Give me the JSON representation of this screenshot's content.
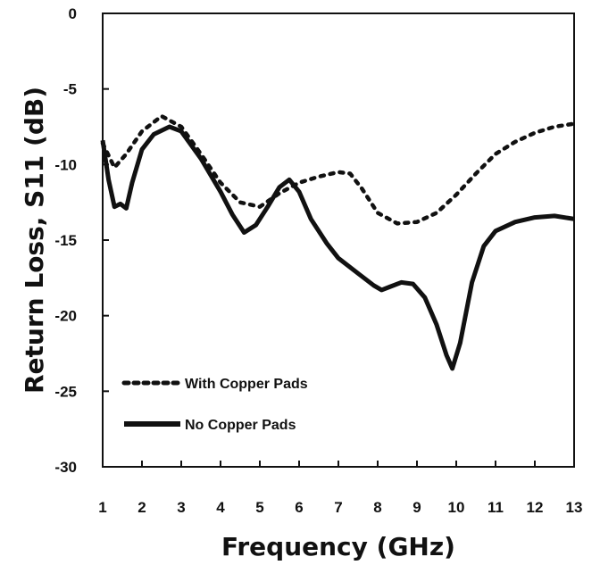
{
  "chart_data": {
    "type": "line",
    "xlabel": "Frequency (GHz)",
    "ylabel": "Return Loss, S11 (dB)",
    "xlim": [
      1,
      13
    ],
    "ylim": [
      -30,
      0
    ],
    "xticks": [
      "1",
      "2",
      "3",
      "4",
      "5",
      "6",
      "7",
      "8",
      "9",
      "10",
      "11",
      "12",
      "13"
    ],
    "yticks": [
      "0",
      "-5",
      "-10",
      "-15",
      "-20",
      "-25",
      "-30"
    ],
    "grid": false,
    "legend_position": "bottom-left",
    "series": [
      {
        "name": "With Copper Pads",
        "style": "dotted",
        "color": "#111111",
        "points": [
          [
            1,
            -8.6
          ],
          [
            1.3,
            -10.2
          ],
          [
            1.6,
            -9.3
          ],
          [
            2,
            -7.8
          ],
          [
            2.5,
            -6.8
          ],
          [
            3,
            -7.5
          ],
          [
            3.5,
            -9.3
          ],
          [
            4,
            -11.2
          ],
          [
            4.5,
            -12.5
          ],
          [
            5,
            -12.8
          ],
          [
            5.5,
            -11.9
          ],
          [
            6,
            -11.2
          ],
          [
            6.5,
            -10.8
          ],
          [
            7,
            -10.5
          ],
          [
            7.3,
            -10.6
          ],
          [
            7.6,
            -11.6
          ],
          [
            8,
            -13.2
          ],
          [
            8.5,
            -13.9
          ],
          [
            9,
            -13.8
          ],
          [
            9.5,
            -13.2
          ],
          [
            10,
            -12.0
          ],
          [
            10.5,
            -10.6
          ],
          [
            11,
            -9.3
          ],
          [
            11.5,
            -8.5
          ],
          [
            12,
            -7.9
          ],
          [
            12.5,
            -7.5
          ],
          [
            13,
            -7.3
          ]
        ]
      },
      {
        "name": "No Copper Pads",
        "style": "solid",
        "color": "#111111",
        "points": [
          [
            1,
            -8.4
          ],
          [
            1.15,
            -11.0
          ],
          [
            1.3,
            -12.8
          ],
          [
            1.45,
            -12.6
          ],
          [
            1.6,
            -12.9
          ],
          [
            1.75,
            -11.2
          ],
          [
            2,
            -9.0
          ],
          [
            2.3,
            -8.0
          ],
          [
            2.7,
            -7.5
          ],
          [
            3,
            -7.8
          ],
          [
            3.5,
            -9.6
          ],
          [
            4,
            -11.8
          ],
          [
            4.3,
            -13.3
          ],
          [
            4.6,
            -14.5
          ],
          [
            4.9,
            -14.0
          ],
          [
            5.2,
            -12.8
          ],
          [
            5.5,
            -11.5
          ],
          [
            5.75,
            -11.0
          ],
          [
            6,
            -11.8
          ],
          [
            6.3,
            -13.6
          ],
          [
            6.7,
            -15.2
          ],
          [
            7,
            -16.2
          ],
          [
            7.5,
            -17.2
          ],
          [
            7.9,
            -18.0
          ],
          [
            8.1,
            -18.3
          ],
          [
            8.3,
            -18.1
          ],
          [
            8.6,
            -17.8
          ],
          [
            8.9,
            -17.9
          ],
          [
            9.2,
            -18.8
          ],
          [
            9.5,
            -20.6
          ],
          [
            9.75,
            -22.6
          ],
          [
            9.9,
            -23.5
          ],
          [
            10.1,
            -21.8
          ],
          [
            10.4,
            -17.8
          ],
          [
            10.7,
            -15.4
          ],
          [
            11,
            -14.4
          ],
          [
            11.5,
            -13.8
          ],
          [
            12,
            -13.5
          ],
          [
            12.5,
            -13.4
          ],
          [
            13,
            -13.6
          ]
        ]
      }
    ]
  }
}
